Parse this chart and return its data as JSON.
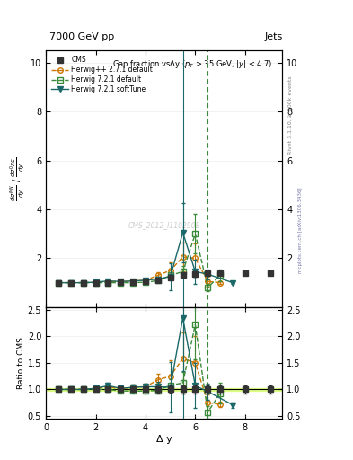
{
  "title_top": "7000 GeV pp",
  "title_right": "Jets",
  "plot_title": "Gap fraction vsΔy (p_{T} > 35 GeV, |y| < 4.7)",
  "ylabel_ratio": "Ratio to CMS",
  "xlabel": "Δ y",
  "watermark": "CMS_2012_I1102908",
  "rivet_label": "Rivet 3.1.10, ≥ 100k events",
  "arxiv_label": "mcplots.cern.ch [arXiv:1306.3436]",
  "cms_x": [
    0.5,
    1.0,
    1.5,
    2.0,
    2.5,
    3.0,
    3.5,
    4.0,
    4.5,
    5.0,
    5.5,
    6.0,
    6.5,
    7.0,
    8.0,
    9.0
  ],
  "cms_y": [
    1.0,
    1.0,
    1.0,
    1.0,
    1.0,
    1.03,
    1.03,
    1.05,
    1.1,
    1.2,
    1.3,
    1.35,
    1.4,
    1.4,
    1.4,
    1.4
  ],
  "cms_yerr": [
    0.03,
    0.03,
    0.03,
    0.03,
    0.04,
    0.04,
    0.04,
    0.05,
    0.06,
    0.08,
    0.1,
    0.1,
    0.1,
    0.1,
    0.1,
    0.1
  ],
  "hpp_x": [
    0.5,
    1.0,
    1.5,
    2.0,
    2.5,
    3.0,
    3.5,
    4.0,
    4.5,
    5.0,
    5.5,
    6.0,
    6.5,
    7.0
  ],
  "hpp_y": [
    1.0,
    1.0,
    1.0,
    1.02,
    1.05,
    1.04,
    1.07,
    1.1,
    1.3,
    1.5,
    2.05,
    2.0,
    1.05,
    1.0
  ],
  "hpp_yerr": [
    0.03,
    0.03,
    0.03,
    0.04,
    0.05,
    0.05,
    0.05,
    0.06,
    0.12,
    0.35,
    0.6,
    0.6,
    0.2,
    0.05
  ],
  "h721d_x": [
    0.5,
    1.0,
    1.5,
    2.0,
    2.5,
    3.0,
    3.5,
    4.0,
    4.5,
    5.0,
    5.5,
    6.0,
    6.5,
    7.0
  ],
  "h721d_y": [
    1.0,
    1.0,
    1.0,
    1.0,
    1.0,
    1.0,
    1.0,
    1.02,
    1.08,
    1.3,
    1.45,
    3.0,
    0.8,
    1.3
  ],
  "h721d_yerr": [
    0.03,
    0.03,
    0.03,
    0.03,
    0.03,
    0.03,
    0.03,
    0.04,
    0.06,
    0.12,
    0.25,
    0.8,
    0.15,
    0.25
  ],
  "h721s_x": [
    0.5,
    1.0,
    1.5,
    2.0,
    2.5,
    3.0,
    3.5,
    4.0,
    4.5,
    5.0,
    5.5,
    6.0,
    6.5,
    7.5
  ],
  "h721s_y": [
    1.0,
    1.0,
    1.0,
    1.02,
    1.07,
    1.05,
    1.07,
    1.1,
    1.15,
    1.25,
    3.05,
    1.45,
    1.35,
    1.0
  ],
  "h721s_yerr": [
    0.03,
    0.03,
    0.03,
    0.04,
    0.05,
    0.05,
    0.05,
    0.06,
    0.09,
    0.55,
    1.2,
    0.5,
    0.2,
    0.05
  ],
  "cms_color": "#333333",
  "hpp_color": "#cc7700",
  "h721d_color": "#3a8a3a",
  "h721s_color": "#1a6868",
  "ratio_hpp_y": [
    1.0,
    1.0,
    1.0,
    1.02,
    1.05,
    1.01,
    1.04,
    1.05,
    1.18,
    1.25,
    1.58,
    1.5,
    0.75,
    0.72
  ],
  "ratio_hpp_yerr": [
    0.03,
    0.03,
    0.03,
    0.04,
    0.05,
    0.05,
    0.05,
    0.06,
    0.12,
    0.3,
    0.5,
    0.5,
    0.15,
    0.05
  ],
  "ratio_h721d_y": [
    1.0,
    1.0,
    1.0,
    1.0,
    1.0,
    0.97,
    0.97,
    0.97,
    0.98,
    1.08,
    1.12,
    2.22,
    0.57,
    0.93
  ],
  "ratio_h721d_yerr": [
    0.03,
    0.03,
    0.03,
    0.03,
    0.03,
    0.03,
    0.03,
    0.04,
    0.06,
    0.12,
    0.2,
    0.65,
    0.12,
    0.2
  ],
  "ratio_h721s_y": [
    1.0,
    1.0,
    1.0,
    1.02,
    1.07,
    1.02,
    1.04,
    1.05,
    1.05,
    1.04,
    2.35,
    1.07,
    0.96,
    0.71
  ],
  "ratio_h721s_yerr": [
    0.03,
    0.03,
    0.03,
    0.04,
    0.05,
    0.05,
    0.05,
    0.06,
    0.09,
    0.48,
    1.0,
    0.42,
    0.15,
    0.05
  ],
  "vline_teal": 5.5,
  "vline_green": 6.5,
  "xlim": [
    0,
    9.5
  ],
  "ylim_main": [
    0.0,
    10.5
  ],
  "ylim_ratio": [
    0.45,
    2.55
  ],
  "yticks_main": [
    2,
    4,
    6,
    8,
    10
  ],
  "yticks_ratio": [
    0.5,
    1.0,
    1.5,
    2.0,
    2.5
  ],
  "cms_band_lo": 0.97,
  "cms_band_hi": 1.03
}
